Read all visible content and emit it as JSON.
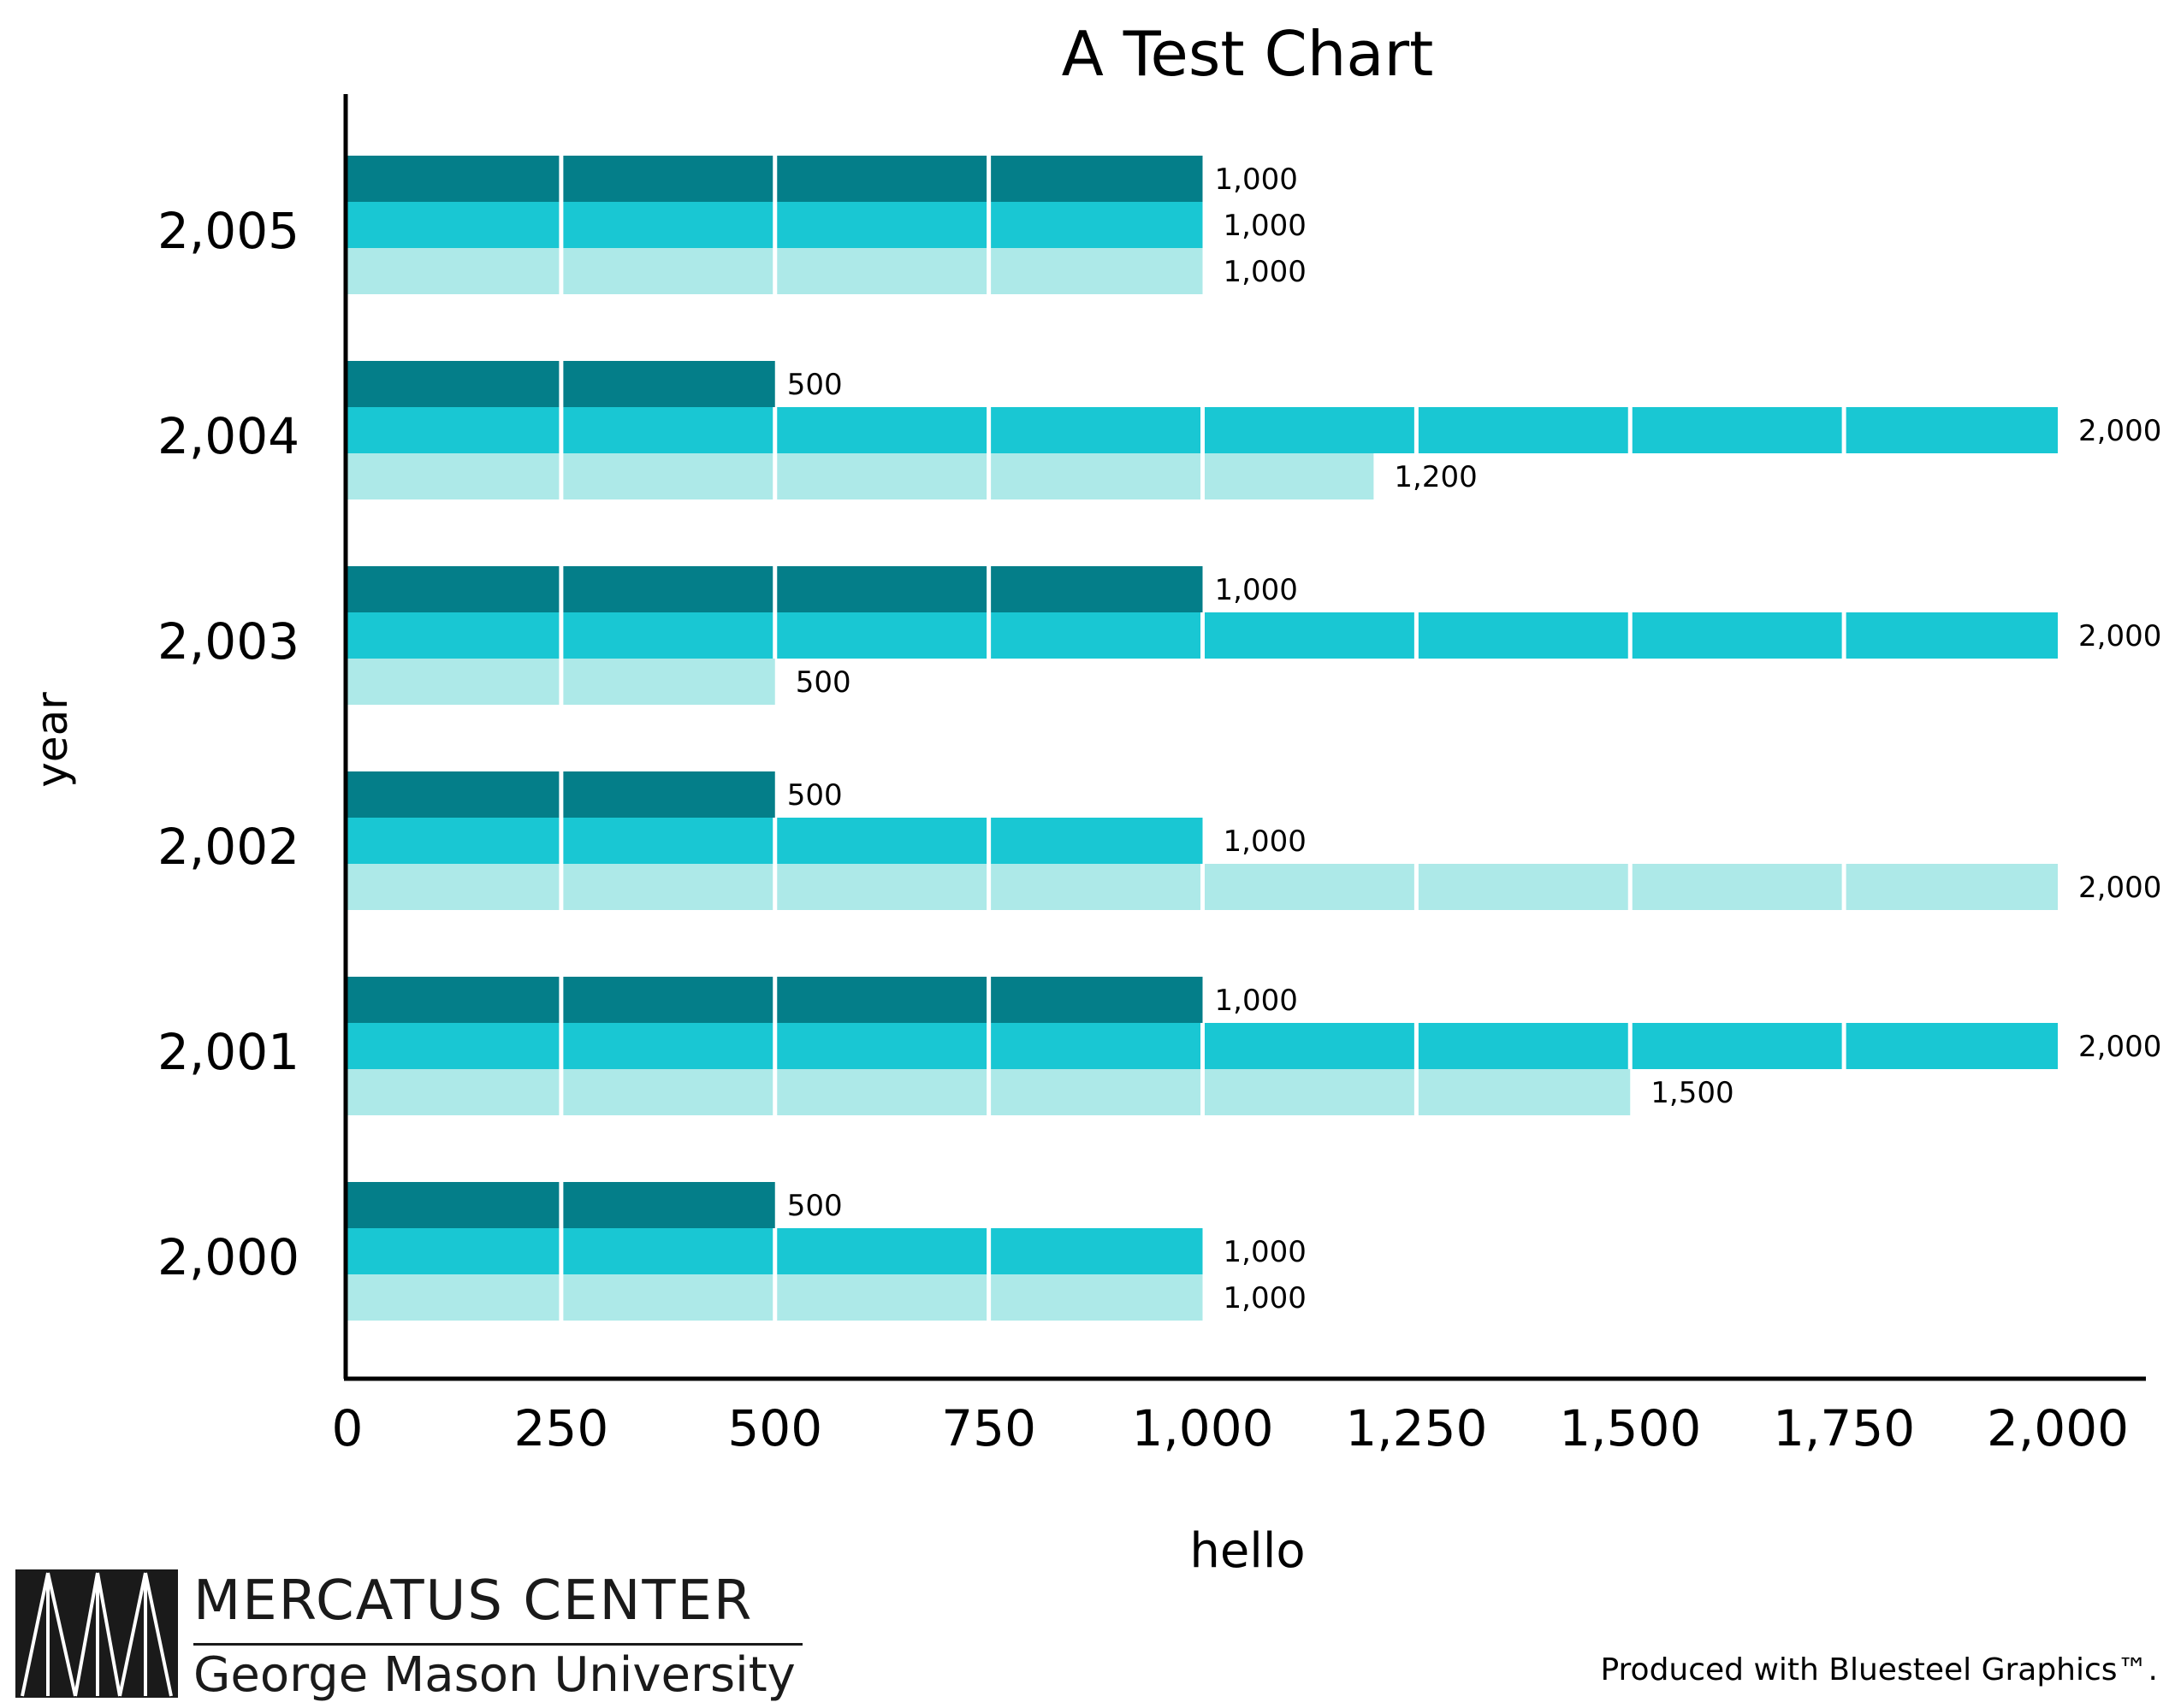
{
  "chart_data": {
    "type": "bar",
    "orientation": "horizontal",
    "title": "A Test Chart",
    "xlabel": "hello",
    "ylabel": "year",
    "categories": [
      "2,000",
      "2,001",
      "2,002",
      "2,003",
      "2,004",
      "2,005"
    ],
    "series": [
      {
        "color": "#047E89",
        "values": [
          500,
          1000,
          500,
          1000,
          500,
          1000
        ],
        "labels": [
          "500",
          "1,000",
          "500",
          "1,000",
          "500",
          "1,000"
        ]
      },
      {
        "color": "#19C7D3",
        "values": [
          1000,
          2000,
          1000,
          2000,
          2000,
          1000
        ],
        "labels": [
          "1,000",
          "2,000",
          "1,000",
          "2,000",
          "2,000",
          "1,000"
        ]
      },
      {
        "color": "#ADE9E8",
        "values": [
          1000,
          1500,
          2000,
          500,
          1200,
          1000
        ],
        "labels": [
          "1,000",
          "1,500",
          "2,000",
          "500",
          "1,200",
          "1,000"
        ]
      }
    ],
    "xlim": [
      0,
      2000
    ],
    "xticks": [
      0,
      250,
      500,
      750,
      1000,
      1250,
      1500,
      1750,
      2000
    ],
    "xtick_labels": [
      "0",
      "250",
      "500",
      "750",
      "1,000",
      "1,250",
      "1,500",
      "1,750",
      "2,000"
    ],
    "segment_step": 250,
    "grid": false,
    "legend": "none"
  },
  "branding": {
    "org_name": "MERCATUS CENTER",
    "org_sub": "George Mason University",
    "credit": "Produced with Bluesteel Graphics™."
  }
}
